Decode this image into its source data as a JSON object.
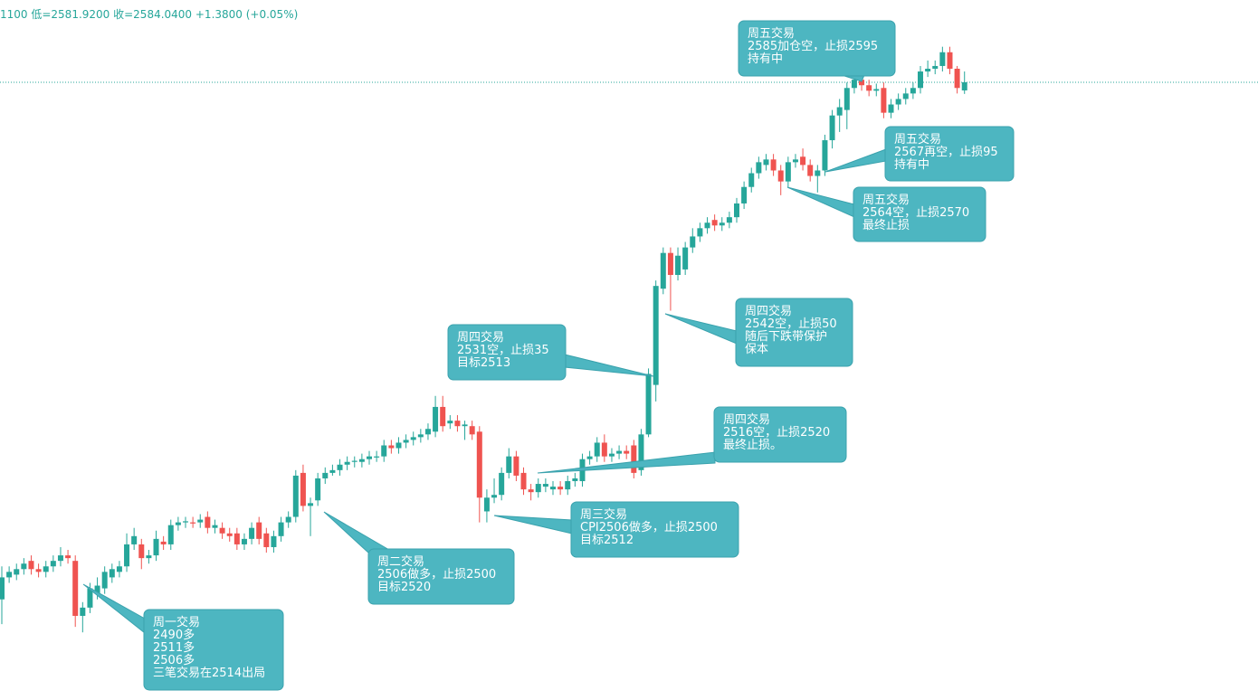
{
  "chart_data": {
    "type": "candlestick",
    "header": "1100 低=2581.9200 收=2584.0400 +1.3800 (+0.05%)",
    "up_color": "#26a69a",
    "down_color": "#ef5350",
    "ylim": [
      2471.7,
      2599
    ],
    "open": [
      2490,
      2494,
      2494.5,
      2495.5,
      2497,
      2495.5,
      2495,
      2496,
      2497,
      2498,
      2497,
      2487,
      2488.5,
      2491,
      2492,
      2494,
      2495,
      2496,
      2500,
      2500,
      2497.5,
      2498,
      2500.5,
      2500,
      2503.5,
      2504,
      2504,
      2504,
      2505,
      2503,
      2503,
      2502,
      2502,
      2500,
      2501,
      2504,
      2502,
      2499.5,
      2501.5,
      2504,
      2505,
      2513,
      2507,
      2508,
      2512,
      2513,
      2513.5,
      2514.5,
      2515,
      2515,
      2515.5,
      2515.8,
      2516,
      2518,
      2517.5,
      2518.5,
      2519,
      2519.5,
      2520,
      2520.5,
      2525,
      2522,
      2522.5,
      2521.5,
      2521.5,
      2520.5,
      2506,
      2508.5,
      2509,
      2513,
      2516,
      2513,
      2510,
      2509.5,
      2510.5,
      2510,
      2510.5,
      2510,
      2511.5,
      2511.5,
      2515.5,
      2516,
      2518.5,
      2516,
      2516.5,
      2517,
      2518,
      2513.5,
      2520,
      2529,
      2546.5,
      2553,
      2549,
      2550,
      2554,
      2556,
      2557.5,
      2559,
      2558,
      2558.5,
      2559.5,
      2562,
      2565,
      2567.5,
      2569,
      2570,
      2568,
      2566,
      2569.5,
      2570.5,
      2569,
      2567,
      2568,
      2573.5,
      2578,
      2579,
      2583,
      2584.5,
      2583.5,
      2582.5,
      2583,
      2578.5,
      2580,
      2581,
      2582,
      2583,
      2586,
      2586.5,
      2587,
      2589.5,
      2586.5,
      2582.56
    ],
    "close": [
      2494,
      2495,
      2495.5,
      2496.5,
      2495.5,
      2495,
      2496,
      2497,
      2498,
      2497.5,
      2487,
      2488.5,
      2492,
      2492.5,
      2495,
      2495.5,
      2496,
      2500,
      2501.5,
      2497.5,
      2498,
      2501,
      2500,
      2503.5,
      2504,
      2504.2,
      2503.8,
      2504.5,
      2503,
      2503.5,
      2502,
      2501.5,
      2500,
      2501,
      2503,
      2501,
      2499.5,
      2501.5,
      2504,
      2505,
      2512.5,
      2507,
      2507.5,
      2512,
      2513,
      2513.5,
      2514.5,
      2515,
      2515.2,
      2515.5,
      2516,
      2516,
      2518,
      2517.5,
      2518.5,
      2519,
      2519.5,
      2520,
      2521,
      2525,
      2521.5,
      2522.5,
      2521.5,
      2521.8,
      2520,
      2508.5,
      2508.5,
      2509,
      2513,
      2516,
      2512.5,
      2510,
      2509.5,
      2511,
      2511,
      2510.5,
      2510,
      2511.5,
      2512,
      2515.5,
      2516,
      2518.5,
      2516,
      2516.5,
      2517,
      2516.5,
      2513,
      2520,
      2531,
      2547,
      2553,
      2549,
      2552.5,
      2554,
      2556,
      2557.5,
      2558.5,
      2558,
      2558.5,
      2559.5,
      2562,
      2565,
      2567.5,
      2569.5,
      2570,
      2568,
      2566,
      2569.5,
      2570,
      2569,
      2567,
      2568,
      2573.5,
      2578,
      2579.5,
      2583,
      2584.5,
      2583.5,
      2582.5,
      2582.8,
      2578.5,
      2580,
      2581,
      2582,
      2583,
      2586,
      2586.5,
      2587,
      2589.5,
      2586.5,
      2583,
      2584.04
    ],
    "high": [
      2496,
      2496,
      2496.5,
      2497.5,
      2498,
      2496.5,
      2497,
      2498,
      2499.5,
      2499,
      2498,
      2489.5,
      2493,
      2494,
      2496,
      2496.5,
      2497,
      2502,
      2503,
      2501,
      2499,
      2502.5,
      2501.5,
      2504.5,
      2505,
      2505,
      2505,
      2505.5,
      2506,
      2504.5,
      2504,
      2503,
      2503,
      2502,
      2504,
      2505,
      2503,
      2502.5,
      2505,
      2506,
      2513.5,
      2514.5,
      2508.5,
      2513,
      2514,
      2514.5,
      2515.5,
      2516,
      2516,
      2516.5,
      2517,
      2517,
      2519,
      2519,
      2519.5,
      2520,
      2520.5,
      2521,
      2522,
      2527,
      2527,
      2523.5,
      2523.5,
      2522.5,
      2522.5,
      2521.5,
      2510,
      2512,
      2514,
      2517.5,
      2517,
      2514,
      2511,
      2512,
      2512,
      2511.5,
      2511.5,
      2512.5,
      2513,
      2516.5,
      2517,
      2519.5,
      2520,
      2517.5,
      2518,
      2518,
      2519,
      2521,
      2532,
      2548,
      2554,
      2554,
      2554,
      2555,
      2557.5,
      2558.5,
      2559.5,
      2560,
      2559.5,
      2560.5,
      2563,
      2566,
      2568.5,
      2570.5,
      2571,
      2571,
      2569,
      2570.5,
      2571,
      2572,
      2570,
      2569,
      2574.5,
      2579,
      2581,
      2584,
      2586,
      2585.5,
      2584.5,
      2583.8,
      2584,
      2581,
      2582,
      2583,
      2584,
      2587,
      2588,
      2588,
      2590.5,
      2590.5,
      2587,
      2586
    ],
    "low": [
      2485.5,
      2493,
      2493.5,
      2494.5,
      2494.5,
      2494,
      2494,
      2495,
      2496,
      2496.5,
      2485,
      2484,
      2487.5,
      2490,
      2491,
      2493,
      2494,
      2495,
      2499,
      2495.5,
      2496.5,
      2497,
      2499,
      2499,
      2502.5,
      2503,
      2503,
      2503,
      2502,
      2502,
      2501,
      2500.5,
      2499,
      2499,
      2500,
      2500,
      2498.5,
      2498.5,
      2500.5,
      2503,
      2504,
      2506,
      2501.5,
      2507,
      2511,
      2512.5,
      2512.5,
      2513.5,
      2514,
      2514,
      2514.5,
      2515,
      2515,
      2516.5,
      2516.5,
      2517.5,
      2518,
      2518.5,
      2519,
      2519.5,
      2520.5,
      2521,
      2520.5,
      2519,
      2519,
      2504,
      2504,
      2507.5,
      2508,
      2512,
      2511.5,
      2509,
      2508,
      2508.5,
      2509.5,
      2509,
      2509,
      2509,
      2510.5,
      2510.5,
      2514.5,
      2515,
      2515,
      2515,
      2515.5,
      2515.5,
      2512,
      2512.5,
      2519.5,
      2526,
      2545.5,
      2542.5,
      2548,
      2549,
      2553,
      2555,
      2556.5,
      2557,
      2557,
      2557.5,
      2558.5,
      2561,
      2564,
      2566.5,
      2568,
      2567,
      2563.5,
      2565,
      2568.5,
      2568,
      2566,
      2564,
      2567,
      2572,
      2575,
      2575.5,
      2582,
      2582.5,
      2581.5,
      2581.5,
      2577.5,
      2577.5,
      2579,
      2580,
      2581,
      2582,
      2585,
      2585.5,
      2586,
      2585.5,
      2582,
      2581.92
    ],
    "annotations": [
      {
        "lines": [
          "周一交易",
          "2490多",
          "2511多",
          "2506多",
          "三笔交易在2514出局"
        ]
      },
      {
        "lines": [
          "周二交易",
          "2506做多，止损2500",
          "目标2520"
        ]
      },
      {
        "lines": [
          "周三交易",
          "CPI2506做多，止损2500",
          "目标2512"
        ]
      },
      {
        "lines": [
          "周四交易",
          "2516空，止损2520",
          "最终止损。"
        ]
      },
      {
        "lines": [
          "周四交易",
          "2531空，止损35",
          "目标2513"
        ]
      },
      {
        "lines": [
          "周四交易",
          "2542空，止损50",
          "随后下跌带保护",
          "保本"
        ]
      },
      {
        "lines": [
          "周五交易",
          "2564空，止损2570",
          "最终止损"
        ]
      },
      {
        "lines": [
          "周五交易",
          "2567再空，止损95",
          "持有中"
        ]
      },
      {
        "lines": [
          "周五交易",
          "2585加仓空，止损2595",
          "持有中"
        ]
      }
    ]
  }
}
